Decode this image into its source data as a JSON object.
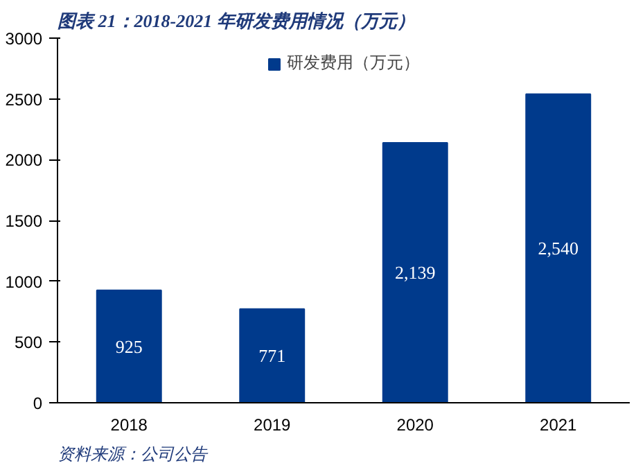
{
  "chart_data": {
    "type": "bar",
    "title": "图表 21：2018-2021 年研发费用情况（万元）",
    "categories": [
      "2018",
      "2019",
      "2020",
      "2021"
    ],
    "series": [
      {
        "name": "研发费用（万元）",
        "color": "#003a8c",
        "values": [
          925,
          771,
          2139,
          2540
        ],
        "value_labels": [
          "925",
          "771",
          "2,139",
          "2,540"
        ]
      }
    ],
    "ylim": [
      0,
      3000
    ],
    "yticks": [
      0,
      500,
      1000,
      1500,
      2000,
      2500,
      3000
    ],
    "grid": false,
    "legend": "top",
    "annotations": [
      "资料来源：公司公告"
    ]
  }
}
